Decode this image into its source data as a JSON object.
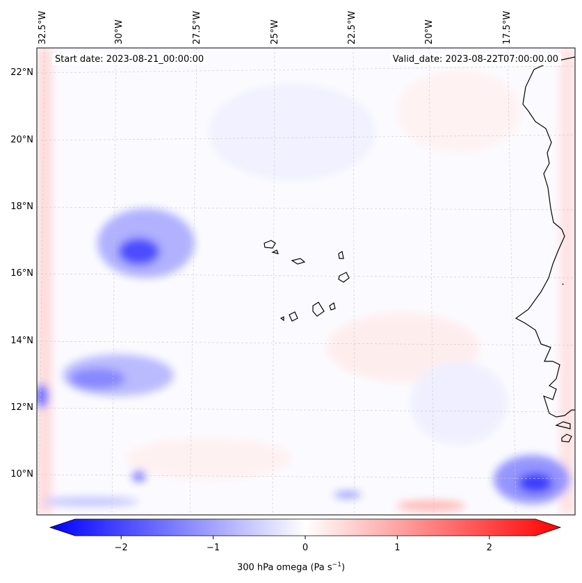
{
  "map": {
    "start_date": "Start date: 2023-08-21_00:00:00",
    "valid_date": "Valid_date: 2023-08-22T07:00:00.00",
    "lon_labels": [
      "32.5°W",
      "30°W",
      "27.5°W",
      "25°W",
      "22.5°W",
      "20°W",
      "17.5°W"
    ],
    "lat_labels": [
      "22°N",
      "20°N",
      "18°N",
      "16°N",
      "14°N",
      "12°N",
      "10°N"
    ],
    "colors": {
      "negative": "#0000ff",
      "zero": "#ffffff",
      "positive": "#ff0000",
      "coast": "#000000",
      "grid": "#c8c8c8"
    }
  },
  "colorbar": {
    "ticks": [
      "−2",
      "−1",
      "0",
      "1",
      "2"
    ],
    "tick_values": [
      -2,
      -1,
      0,
      1,
      2
    ],
    "range": [
      -2.75,
      2.75
    ],
    "label": "300 hPa omega (Pa s",
    "label_sup": "−1",
    "label_end": ")"
  }
}
